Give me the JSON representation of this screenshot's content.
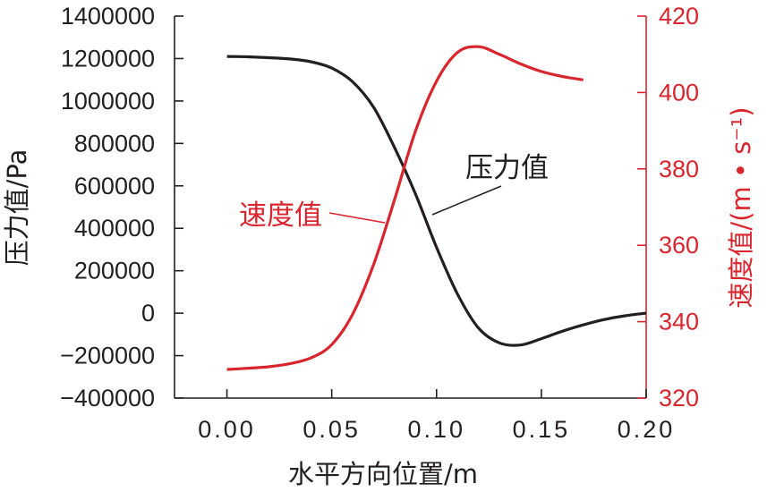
{
  "chart_data": {
    "type": "line",
    "dual_axis": true,
    "xlabel": "水平方向位置/m",
    "ylabel_left": "压力值/Pa",
    "ylabel_right": "速度值/(m • s⁻¹)",
    "xlim": [
      -0.025,
      0.2
    ],
    "ylim_left": [
      -400000,
      1400000
    ],
    "ylim_right": [
      320,
      420
    ],
    "x_tick_labels": [
      "0.00",
      "0.05",
      "0.10",
      "0.15",
      "0.20"
    ],
    "y_left_tick_labels": [
      "1400000",
      "1200000",
      "1000000",
      "800000",
      "600000",
      "400000",
      "200000",
      "0",
      "−200000",
      "−400000"
    ],
    "y_right_tick_labels": [
      "420",
      "400",
      "380",
      "360",
      "340",
      "320"
    ],
    "grid": false,
    "legend": "none",
    "annotations": {
      "pressure": "压力值",
      "velocity": "速度值"
    },
    "colors": {
      "pressure": "#231f20",
      "velocity": "#d9262e",
      "axis": "#231f20",
      "right_axis": "#d9262e"
    },
    "series": [
      {
        "axis": "left",
        "x": [
          0.0,
          0.01,
          0.02,
          0.03,
          0.04,
          0.05,
          0.06,
          0.07,
          0.08,
          0.09,
          0.1,
          0.11,
          0.12,
          0.13,
          0.14,
          0.15,
          0.16,
          0.17,
          0.18,
          0.19,
          0.2
        ],
        "values": [
          1210000,
          1208000,
          1204000,
          1198000,
          1185000,
          1155000,
          1090000,
          970000,
          780000,
          560000,
          310000,
          90000,
          -70000,
          -140000,
          -150000,
          -120000,
          -85000,
          -55000,
          -30000,
          -12000,
          0
        ]
      },
      {
        "axis": "right",
        "x": [
          0.0,
          0.01,
          0.02,
          0.03,
          0.04,
          0.05,
          0.06,
          0.07,
          0.08,
          0.09,
          0.1,
          0.11,
          0.12,
          0.13,
          0.14,
          0.15,
          0.16,
          0.17
        ],
        "values": [
          327.5,
          327.8,
          328.2,
          329.0,
          330.5,
          334.0,
          342.0,
          355.0,
          372.0,
          390.0,
          403.0,
          410.5,
          412.0,
          410.0,
          407.5,
          405.5,
          404.2,
          403.3
        ]
      }
    ]
  }
}
